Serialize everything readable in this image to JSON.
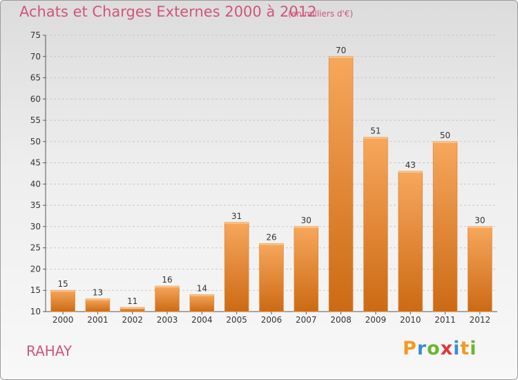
{
  "title": "Achats et Charges Externes 2000 à 2012",
  "unit_label": "(en milliers d'€)",
  "commune": "RAHAY",
  "logo": {
    "letters": [
      "P",
      "r",
      "o",
      "x",
      "i",
      "t",
      "i"
    ],
    "colors": [
      "#f39a1f",
      "#3a8fd0",
      "#6cb52d",
      "#e2343c",
      "#3a8fd0",
      "#f39a1f",
      "#6cb52d"
    ]
  },
  "colors": {
    "bar_light": "#f7a75c",
    "bar_dark": "#cc6a14",
    "accent_text": "#d0557a"
  },
  "chart_data": {
    "type": "bar",
    "categories": [
      "2000",
      "2001",
      "2002",
      "2003",
      "2004",
      "2005",
      "2006",
      "2007",
      "2008",
      "2009",
      "2010",
      "2011",
      "2012"
    ],
    "values": [
      15,
      13,
      11,
      16,
      14,
      31,
      26,
      30,
      70,
      51,
      43,
      50,
      30
    ],
    "ylim": [
      10,
      75
    ],
    "yticks": [
      10,
      15,
      20,
      25,
      30,
      35,
      40,
      45,
      50,
      55,
      60,
      65,
      70,
      75
    ],
    "grid": "horizontal",
    "legend": "none"
  }
}
